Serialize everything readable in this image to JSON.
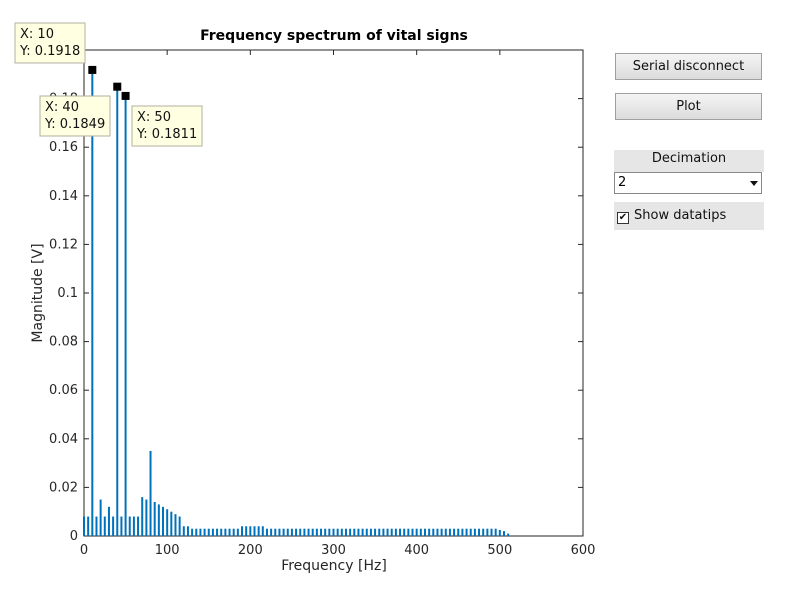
{
  "chart_data": {
    "type": "bar",
    "title": "Frequency spectrum of vital signs",
    "x_label": "Frequency [Hz]",
    "y_label": "Magnitude [V]",
    "xlim": [
      0,
      600
    ],
    "xticks": [
      0,
      100,
      200,
      300,
      400,
      500,
      600
    ],
    "ylim": [
      0,
      0.2
    ],
    "yticks": [
      0,
      0.02,
      0.04,
      0.06,
      0.08,
      0.1,
      0.12,
      0.14,
      0.16,
      0.18,
      0.2
    ],
    "grid": false,
    "series": [
      {
        "color": "#0072bd",
        "x": [
          0,
          5,
          10,
          15,
          20,
          25,
          30,
          35,
          40,
          45,
          50,
          55,
          60,
          65,
          70,
          75,
          80,
          85,
          90,
          95,
          100,
          105,
          110,
          115,
          120,
          125,
          130,
          135,
          140,
          145,
          150,
          155,
          160,
          165,
          170,
          175,
          180,
          185,
          190,
          195,
          200,
          205,
          210,
          215,
          220,
          225,
          230,
          235,
          240,
          245,
          250,
          255,
          260,
          265,
          270,
          275,
          280,
          285,
          290,
          295,
          300,
          305,
          310,
          315,
          320,
          325,
          330,
          335,
          340,
          345,
          350,
          355,
          360,
          365,
          370,
          375,
          380,
          385,
          390,
          395,
          400,
          405,
          410,
          415,
          420,
          425,
          430,
          435,
          440,
          445,
          450,
          455,
          460,
          465,
          470,
          475,
          480,
          485,
          490,
          495,
          500,
          505,
          510
        ],
        "values": [
          0.008,
          0.008,
          0.1918,
          0.008,
          0.015,
          0.008,
          0.012,
          0.008,
          0.1849,
          0.008,
          0.1811,
          0.008,
          0.008,
          0.008,
          0.016,
          0.015,
          0.035,
          0.014,
          0.013,
          0.012,
          0.011,
          0.01,
          0.009,
          0.008,
          0.004,
          0.004,
          0.003,
          0.003,
          0.003,
          0.003,
          0.003,
          0.003,
          0.003,
          0.003,
          0.003,
          0.003,
          0.003,
          0.003,
          0.004,
          0.004,
          0.004,
          0.004,
          0.004,
          0.004,
          0.003,
          0.003,
          0.003,
          0.003,
          0.003,
          0.003,
          0.003,
          0.003,
          0.003,
          0.003,
          0.003,
          0.003,
          0.003,
          0.003,
          0.003,
          0.003,
          0.003,
          0.003,
          0.003,
          0.003,
          0.003,
          0.003,
          0.003,
          0.003,
          0.003,
          0.003,
          0.003,
          0.003,
          0.003,
          0.003,
          0.003,
          0.003,
          0.003,
          0.003,
          0.003,
          0.003,
          0.003,
          0.003,
          0.003,
          0.003,
          0.003,
          0.003,
          0.003,
          0.003,
          0.003,
          0.003,
          0.003,
          0.003,
          0.003,
          0.003,
          0.003,
          0.003,
          0.003,
          0.003,
          0.003,
          0.003,
          0.0025,
          0.002,
          0.001
        ]
      }
    ],
    "datatips": [
      {
        "x": 10,
        "y": 0.1918,
        "text": [
          "X: 10",
          "Y: 0.1918"
        ]
      },
      {
        "x": 40,
        "y": 0.1849,
        "text": [
          "X: 40",
          "Y: 0.1849"
        ]
      },
      {
        "x": 50,
        "y": 0.1811,
        "text": [
          "X: 50",
          "Y: 0.1811"
        ]
      }
    ]
  },
  "controls": {
    "serial_button": "Serial disconnect",
    "plot_button": "Plot",
    "decimation_label": "Decimation",
    "decimation_value": "2",
    "datatips_checkbox": "Show datatips",
    "datatips_checked": true
  }
}
